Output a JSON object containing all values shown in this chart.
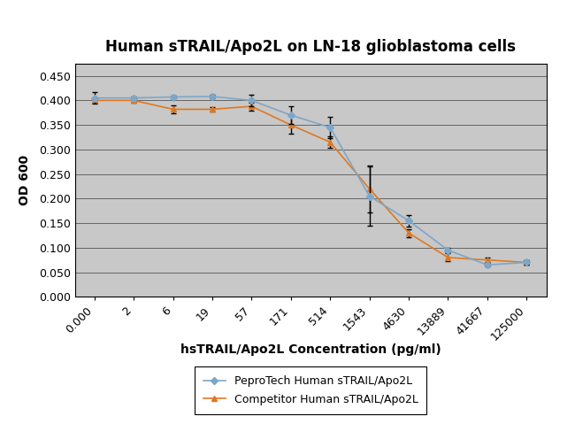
{
  "title": "Human sTRAIL/Apo2L on LN-18 glioblastoma cells",
  "xlabel": "hsTRAIL/Apo2L Concentration (pg/ml)",
  "ylabel": "OD 600",
  "x_labels": [
    "0.000",
    "2",
    "6",
    "19",
    "57",
    "171",
    "514",
    "1543",
    "4630",
    "13889",
    "41667",
    "125000"
  ],
  "pepro_y": [
    0.405,
    0.405,
    0.407,
    0.408,
    0.4,
    0.37,
    0.345,
    0.205,
    0.155,
    0.095,
    0.065,
    0.07
  ],
  "pepro_yerr": [
    0.012,
    0.003,
    0.003,
    0.003,
    0.012,
    0.018,
    0.022,
    0.06,
    0.012,
    0.004,
    0.004,
    0.004
  ],
  "comp_y": [
    0.4,
    0.4,
    0.382,
    0.382,
    0.388,
    0.35,
    0.315,
    0.22,
    0.13,
    0.08,
    0.075,
    0.07
  ],
  "comp_yerr": [
    0.004,
    0.004,
    0.008,
    0.004,
    0.008,
    0.018,
    0.012,
    0.048,
    0.008,
    0.008,
    0.004,
    0.004
  ],
  "pepro_color": "#7EA6C8",
  "comp_color": "#E07820",
  "bg_color": "#C8C8C8",
  "ylim": [
    0.0,
    0.475
  ],
  "yticks": [
    0.0,
    0.05,
    0.1,
    0.15,
    0.2,
    0.25,
    0.3,
    0.35,
    0.4,
    0.45
  ],
  "legend_pepro": "PeproTech Human sTRAIL/Apo2L",
  "legend_comp": "Competitor Human sTRAIL/Apo2L",
  "title_fontsize": 12,
  "label_fontsize": 10,
  "tick_fontsize": 9
}
